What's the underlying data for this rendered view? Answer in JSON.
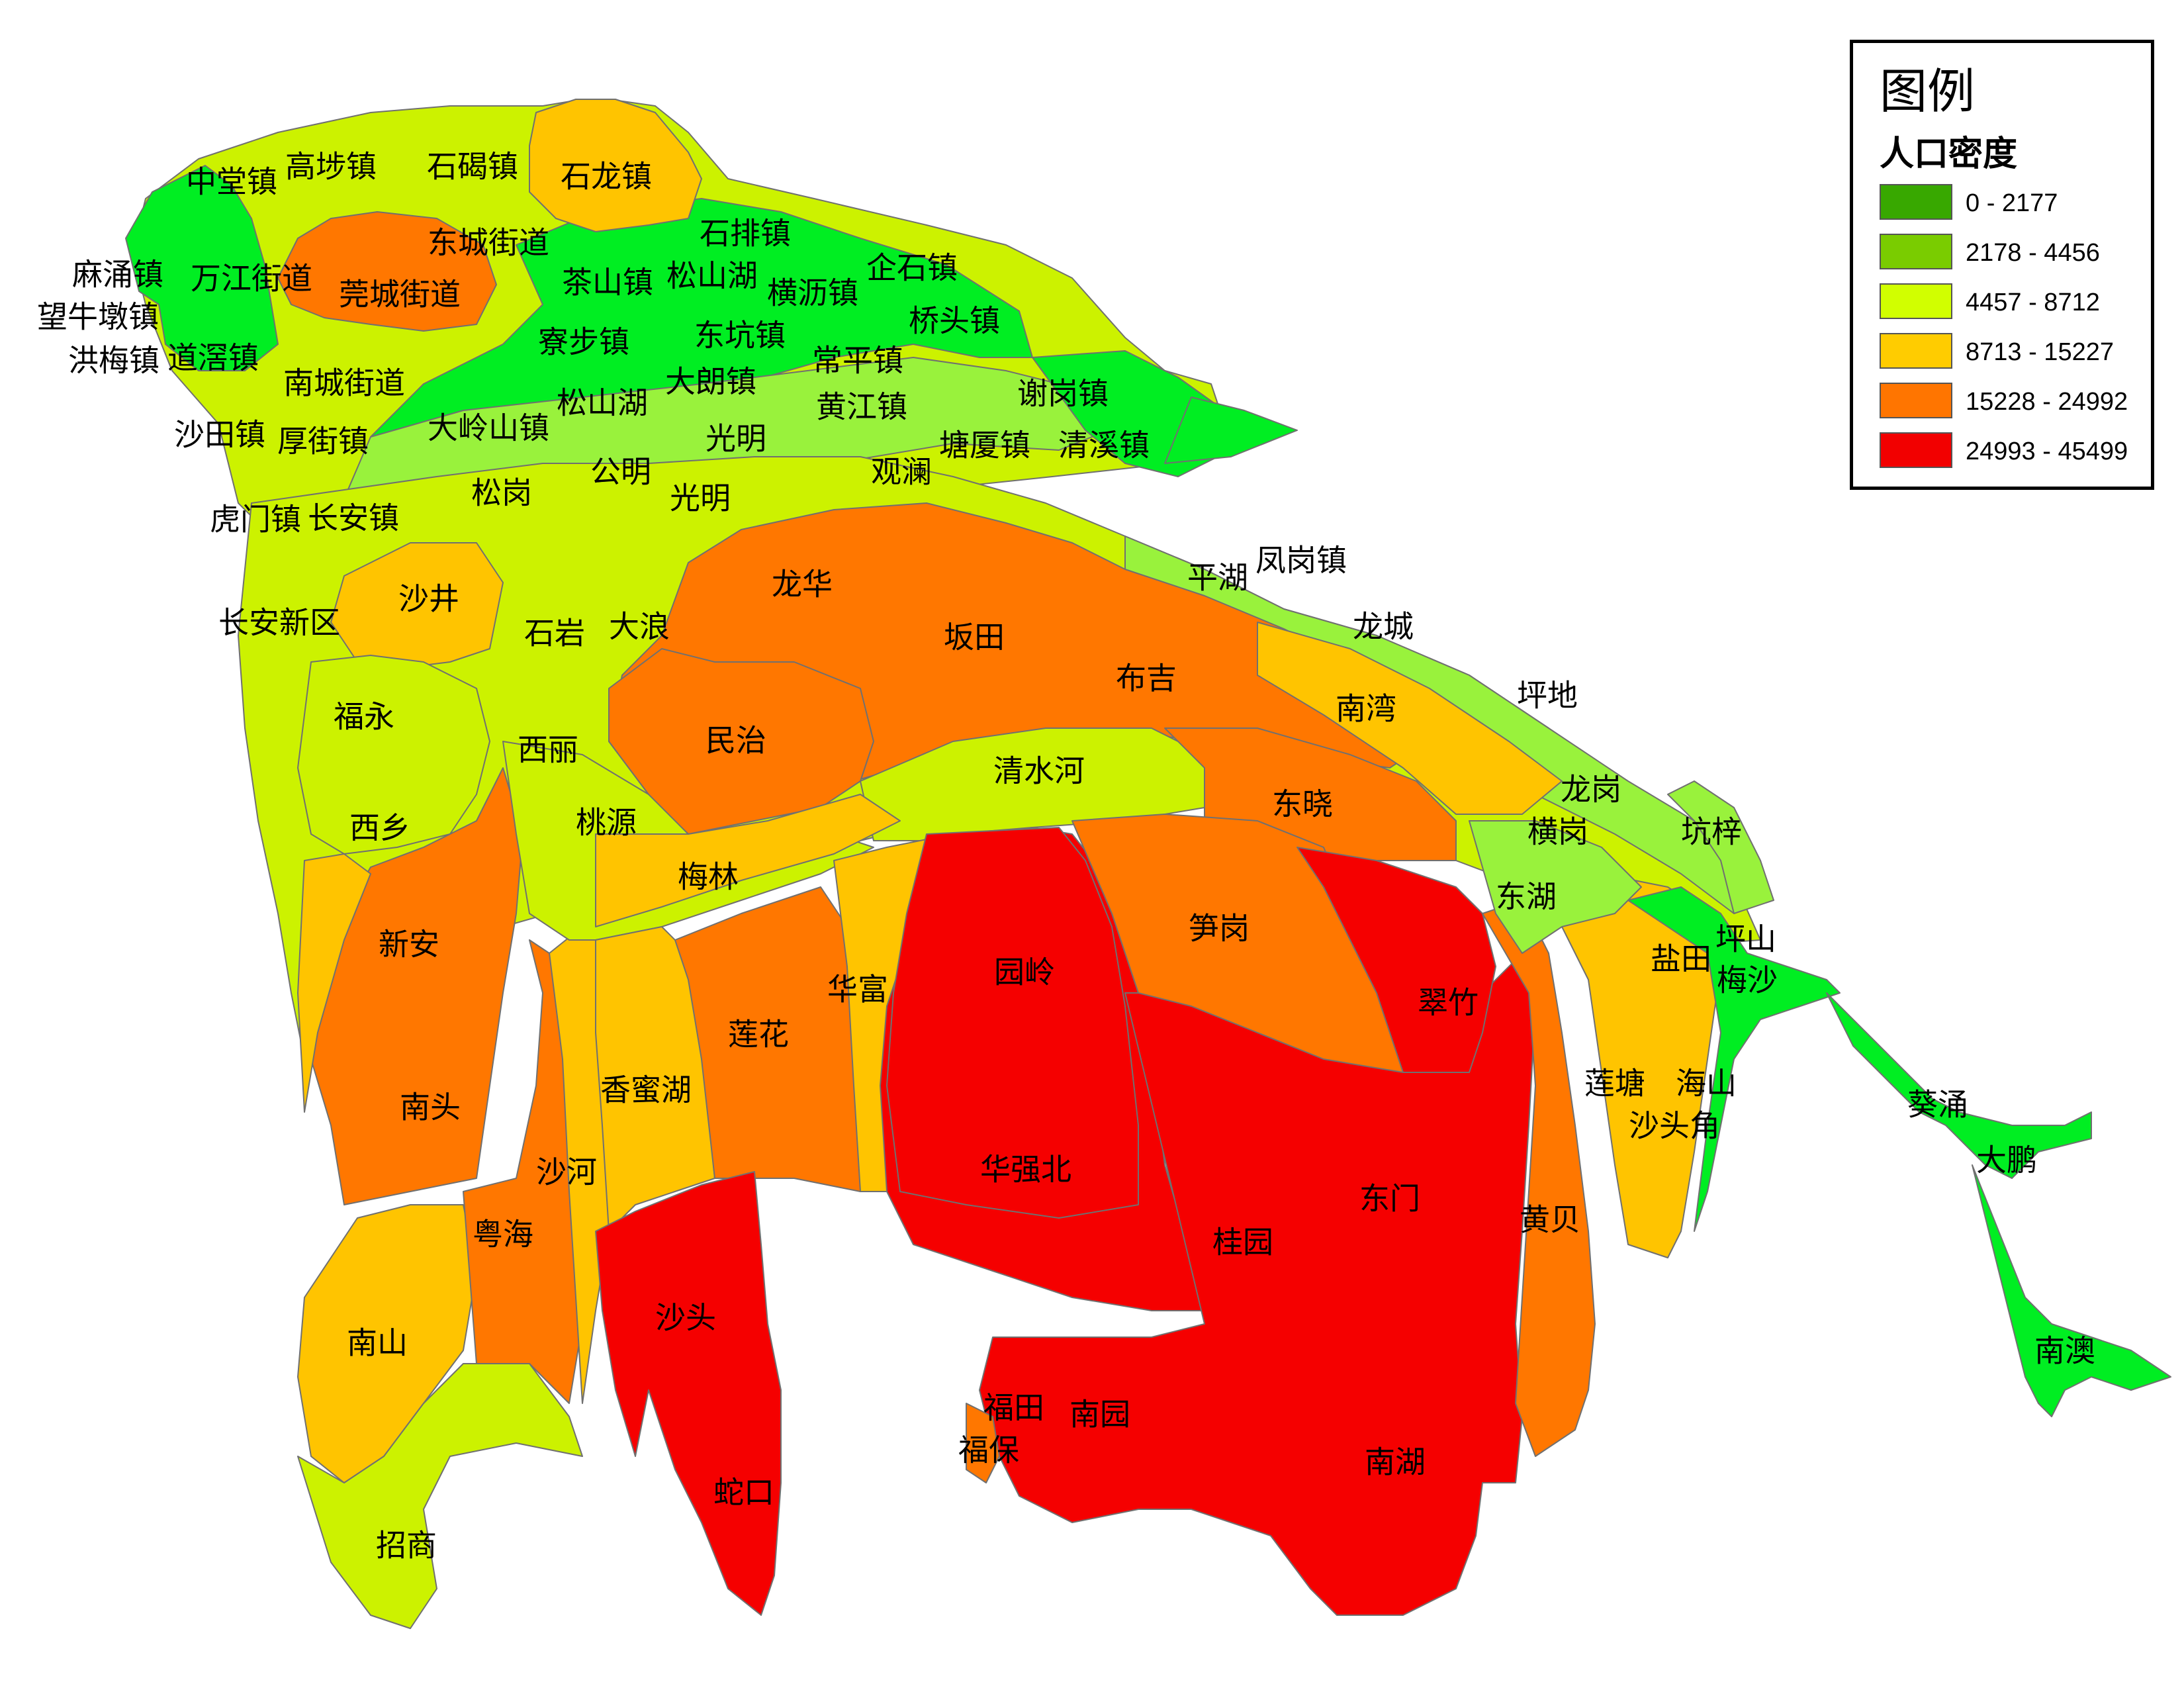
{
  "legend": {
    "title": "图例",
    "subtitle": "人口密度",
    "classes": [
      {
        "label": "0 - 2177",
        "color": "#38a800"
      },
      {
        "label": "2178 - 4456",
        "color": "#7acc00"
      },
      {
        "label": "4457 - 8712",
        "color": "#d1ff00"
      },
      {
        "label": "8713 - 15227",
        "color": "#ffcc00"
      },
      {
        "label": "15228 - 24992",
        "color": "#ff7500"
      },
      {
        "label": "24993 - 45499",
        "color": "#f20000"
      }
    ]
  },
  "colors": {
    "bright_green": "#00ee22",
    "yellow_green": "#ccf200",
    "light_green": "#99f23c",
    "orange_yellow": "#ffc400",
    "orange": "#ff7700",
    "red": "#f50000",
    "border": "#707070"
  },
  "labels": [
    "中堂镇",
    "高埗镇",
    "石碣镇",
    "石龙镇",
    "东城街道",
    "石排镇",
    "麻涌镇",
    "万江街道",
    "莞城街道",
    "茶山镇",
    "松山湖",
    "企石镇",
    "横沥镇",
    "望牛墩镇",
    "寮步镇",
    "东坑镇",
    "桥头镇",
    "洪梅镇",
    "道滘镇",
    "常平镇",
    "南城街道",
    "大朗镇",
    "谢岗镇",
    "松山湖",
    "黄江镇",
    "沙田镇",
    "厚街镇",
    "大岭山镇",
    "光明",
    "塘厦镇",
    "清溪镇",
    "公明",
    "观澜",
    "松岗",
    "光明",
    "虎门镇",
    "长安镇",
    "凤岗镇",
    "平湖",
    "龙华",
    "沙井",
    "长安新区",
    "石岩",
    "大浪",
    "坂田",
    "龙城",
    "布吉",
    "坪地",
    "南湾",
    "福永",
    "西丽",
    "民治",
    "清水河",
    "龙岗",
    "东晓",
    "横岗",
    "坑梓",
    "西乡",
    "桃源",
    "梅林",
    "东湖",
    "笋岗",
    "坪山",
    "盐田",
    "梅沙",
    "新安",
    "园岭",
    "翠竹",
    "华富",
    "莲花",
    "香蜜湖",
    "莲塘",
    "海山",
    "南头",
    "葵涌",
    "沙头角",
    "大鹏",
    "华强北",
    "沙河",
    "东门",
    "黄贝",
    "桂园",
    "粤海",
    "沙头",
    "南澳",
    "南山",
    "福田",
    "南园",
    "南湖",
    "福保",
    "蛇口",
    "招商"
  ]
}
